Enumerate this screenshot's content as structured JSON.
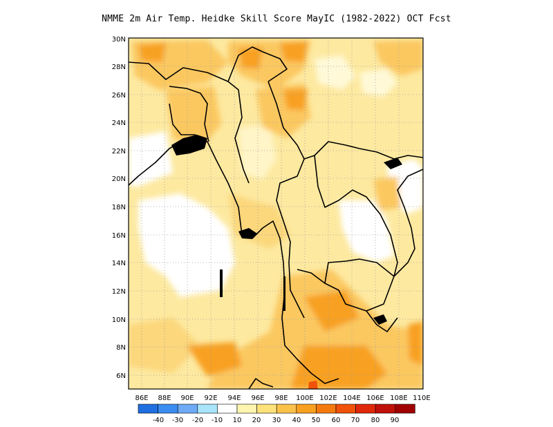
{
  "title": "NMME 2m Air Temp. Heidke Skill Score MayIC (1982-2022) OCT Fcst",
  "map": {
    "lat_labels": [
      "30N",
      "28N",
      "26N",
      "24N",
      "22N",
      "20N",
      "18N",
      "16N",
      "14N",
      "12N",
      "10N",
      "8N",
      "6N"
    ],
    "lon_labels": [
      "86E",
      "88E",
      "90E",
      "92E",
      "94E",
      "96E",
      "98E",
      "100E",
      "102E",
      "104E",
      "106E",
      "108E",
      "110E"
    ],
    "extent": {
      "lon_min": 85,
      "lon_max": 110,
      "lat_min": 5,
      "lat_max": 30
    }
  },
  "colorbar": {
    "colors": [
      "#1f6fe0",
      "#3a8cf0",
      "#6eaaf5",
      "#a8e4fa",
      "#ffffff",
      "#fdf5b0",
      "#fde27a",
      "#fbc24a",
      "#f8a020",
      "#f57a0e",
      "#f0520a",
      "#e0280a",
      "#c0100a",
      "#a00000"
    ],
    "labels": [
      "-40",
      "-30",
      "-20",
      "-10",
      "10",
      "20",
      "30",
      "40",
      "50",
      "60",
      "70",
      "80",
      "90"
    ]
  }
}
